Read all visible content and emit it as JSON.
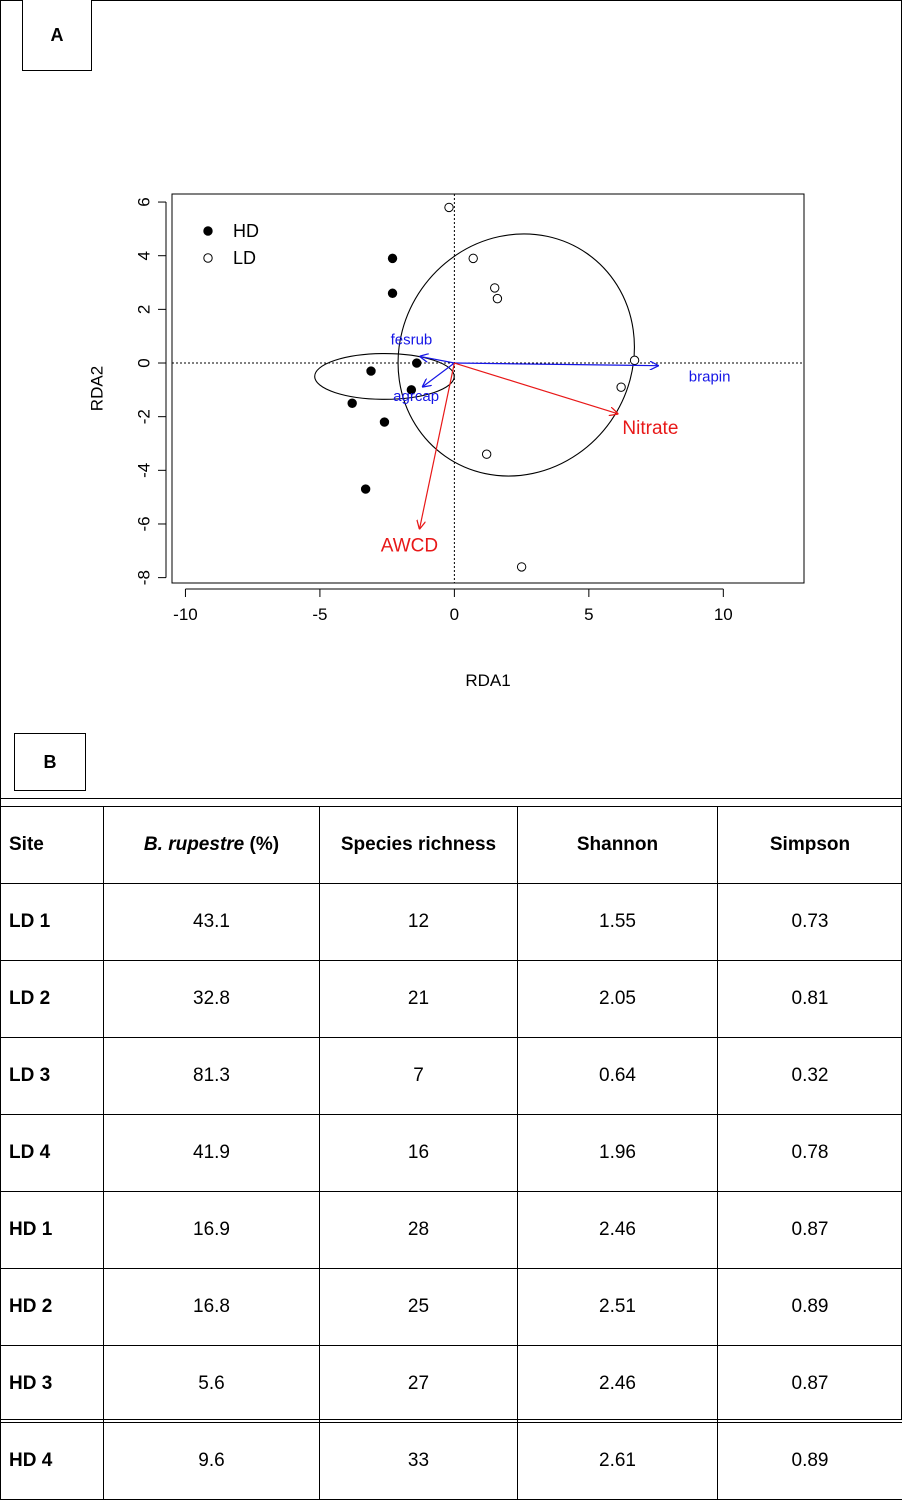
{
  "panels": {
    "a": "A",
    "b": "B"
  },
  "chart_data": {
    "type": "scatter",
    "xlabel": "RDA1",
    "ylabel": "RDA2",
    "xlim": [
      -10.5,
      13
    ],
    "ylim": [
      -8.2,
      6.3
    ],
    "x_ticks": [
      -10,
      -5,
      0,
      5,
      10
    ],
    "y_ticks": [
      -8,
      -6,
      -4,
      -2,
      0,
      2,
      4,
      6
    ],
    "reference_lines": {
      "x": 0,
      "y": 0,
      "style": "dotted"
    },
    "legend": {
      "position": "top-left",
      "entries": [
        {
          "label": "HD",
          "marker": "filled-circle"
        },
        {
          "label": "LD",
          "marker": "open-circle"
        }
      ]
    },
    "series": [
      {
        "name": "HD",
        "marker": "filled-circle",
        "color": "#000000",
        "points": [
          [
            -2.3,
            3.9
          ],
          [
            -2.3,
            2.6
          ],
          [
            -1.4,
            0.0
          ],
          [
            -3.1,
            -0.3
          ],
          [
            -1.6,
            -1.0
          ],
          [
            -3.8,
            -1.5
          ],
          [
            -2.6,
            -2.2
          ],
          [
            -3.3,
            -4.7
          ]
        ]
      },
      {
        "name": "LD",
        "marker": "open-circle",
        "color": "#000000",
        "points": [
          [
            -0.2,
            5.8
          ],
          [
            0.7,
            3.9
          ],
          [
            1.5,
            2.8
          ],
          [
            1.6,
            2.4
          ],
          [
            6.7,
            0.1
          ],
          [
            6.2,
            -0.9
          ],
          [
            1.2,
            -3.4
          ],
          [
            2.5,
            -7.6
          ]
        ]
      }
    ],
    "ellipses": [
      {
        "group": "HD",
        "center": [
          -2.6,
          -0.5
        ],
        "rx": 0.85,
        "ry": 2.6,
        "angle_deg": -90
      },
      {
        "group": "LD",
        "center": [
          2.3,
          0.3
        ],
        "rx": 4.6,
        "ry": 4.3,
        "angle_deg": -55
      }
    ],
    "species_vectors": {
      "color": "#1515e6",
      "items": [
        {
          "label": "fesrub",
          "end": [
            -1.3,
            0.25
          ]
        },
        {
          "label": "agrcap",
          "end": [
            -1.2,
            -0.9
          ]
        },
        {
          "label": "brapin",
          "end": [
            7.6,
            -0.1
          ]
        }
      ]
    },
    "env_vectors": {
      "color": "#e81818",
      "items": [
        {
          "label": "Nitrate",
          "end": [
            6.1,
            -1.9
          ]
        },
        {
          "label": "AWCD",
          "end": [
            -1.3,
            -6.2
          ]
        }
      ]
    }
  },
  "table": {
    "headers": {
      "site": "Site",
      "rupestre_name": "B. rupestre",
      "rupestre_unit": " (%)",
      "richness": "Species richness",
      "shannon": "Shannon",
      "simpson": "Simpson"
    },
    "rows": [
      {
        "site": "LD 1",
        "rupestre": "43.1",
        "richness": "12",
        "shannon": "1.55",
        "simpson": "0.73"
      },
      {
        "site": "LD 2",
        "rupestre": "32.8",
        "richness": "21",
        "shannon": "2.05",
        "simpson": "0.81"
      },
      {
        "site": "LD 3",
        "rupestre": "81.3",
        "richness": "7",
        "shannon": "0.64",
        "simpson": "0.32"
      },
      {
        "site": "LD 4",
        "rupestre": "41.9",
        "richness": "16",
        "shannon": "1.96",
        "simpson": "0.78"
      },
      {
        "site": "HD 1",
        "rupestre": "16.9",
        "richness": "28",
        "shannon": "2.46",
        "simpson": "0.87"
      },
      {
        "site": "HD 2",
        "rupestre": "16.8",
        "richness": "25",
        "shannon": "2.51",
        "simpson": "0.89"
      },
      {
        "site": "HD 3",
        "rupestre": "5.6",
        "richness": "27",
        "shannon": "2.46",
        "simpson": "0.87"
      },
      {
        "site": "HD 4",
        "rupestre": "9.6",
        "richness": "33",
        "shannon": "2.61",
        "simpson": "0.89"
      }
    ]
  }
}
